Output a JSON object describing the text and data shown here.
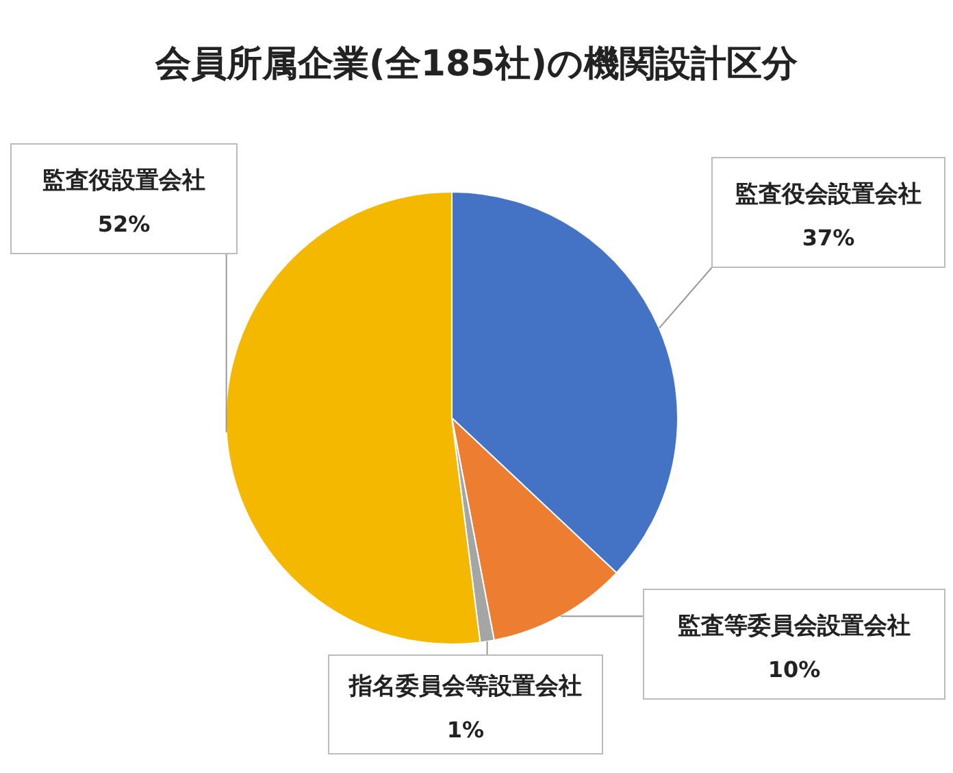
{
  "chart_data": {
    "type": "pie",
    "title": "会員所属企業(全185社)の機関設計区分",
    "categories": [
      "監査役会設置会社",
      "監査等委員会設置会社",
      "指名委員会等設置会社",
      "監査役設置会社"
    ],
    "values": [
      37,
      10,
      1,
      52
    ],
    "colors": [
      "#4472c4",
      "#ed7d31",
      "#a5a5a5",
      "#f5b800"
    ],
    "value_labels": [
      "37%",
      "10%",
      "1%",
      "52%"
    ]
  }
}
